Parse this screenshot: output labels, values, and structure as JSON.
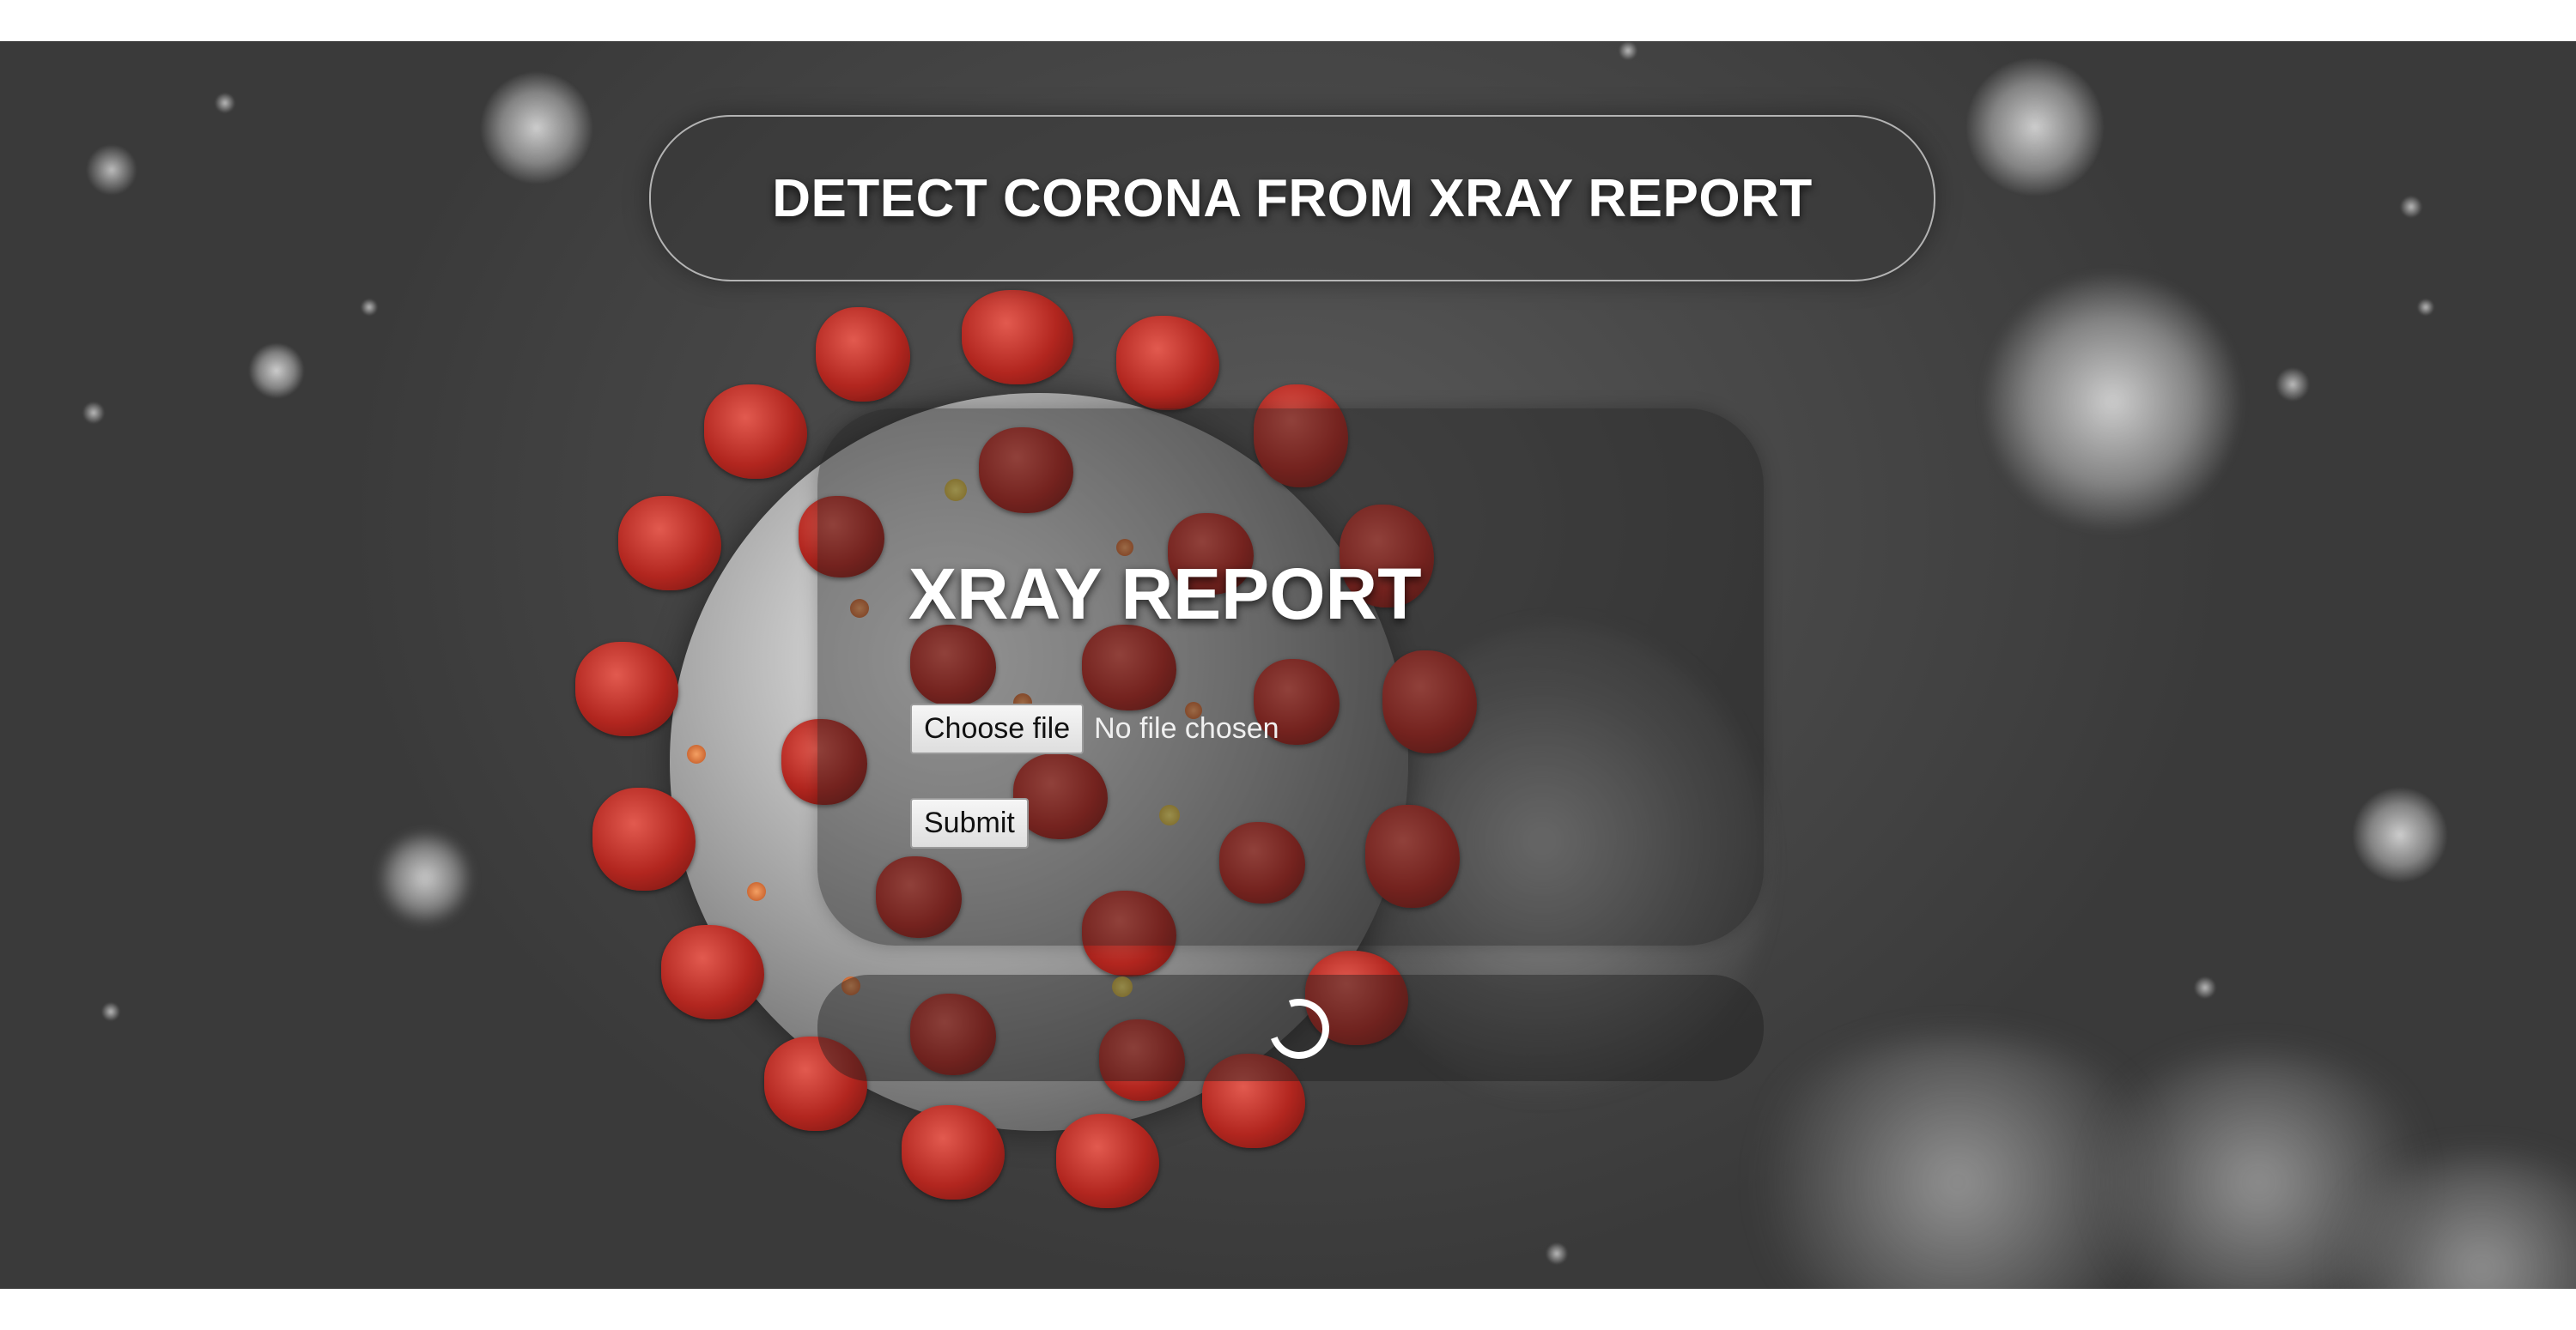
{
  "header": {
    "title": "DETECT CORONA FROM XRAY REPORT"
  },
  "card": {
    "title": "XRAY REPORT",
    "file_button_label": "Choose file",
    "file_status": "No file chosen",
    "submit_label": "Submit"
  },
  "loader": {
    "icon": "loading-spinner-icon"
  },
  "background": {
    "image": "coronavirus-illustration",
    "colors": {
      "backdrop": "#4a4a4a",
      "spike": "#b2261f",
      "body": "#9b9b9b"
    }
  }
}
